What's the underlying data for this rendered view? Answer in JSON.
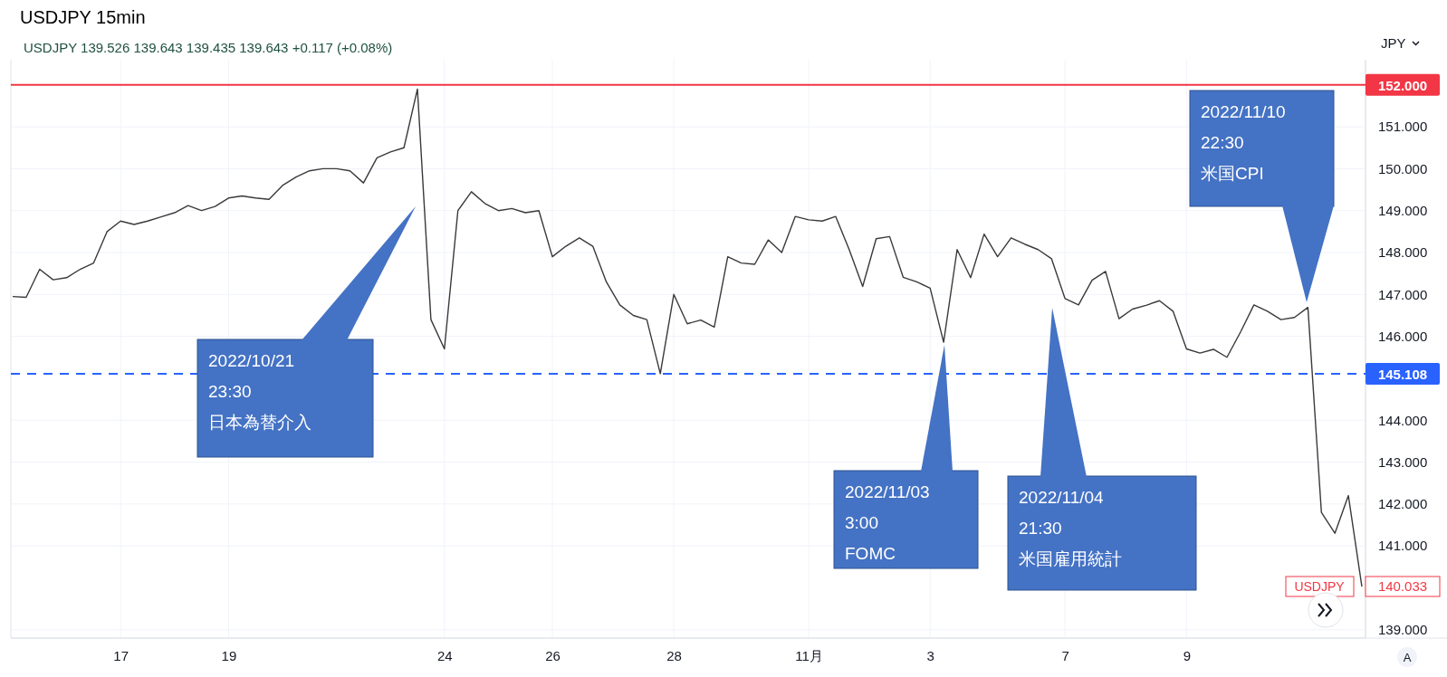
{
  "chart_data": {
    "type": "line",
    "title": "USDJPY 15min",
    "subtitle": "USDJPY 139.526 139.643 139.435 139.643 +0.117 (+0.08%)",
    "categories": [
      null,
      null,
      null,
      null,
      null,
      null,
      null,
      null,
      "17",
      null,
      null,
      null,
      null,
      null,
      null,
      null,
      "19",
      null,
      null,
      null,
      null,
      null,
      null,
      null,
      null,
      null,
      null,
      null,
      null,
      null,
      null,
      null,
      "24",
      null,
      null,
      null,
      null,
      null,
      null,
      null,
      "26",
      null,
      null,
      null,
      null,
      null,
      null,
      null,
      null,
      "28",
      null,
      null,
      null,
      null,
      null,
      null,
      null,
      null,
      null,
      "11月",
      null,
      null,
      null,
      null,
      null,
      null,
      null,
      null,
      "3",
      null,
      null,
      null,
      null,
      null,
      null,
      null,
      null,
      null,
      "7",
      null,
      null,
      null,
      null,
      null,
      null,
      null,
      null,
      "9",
      null,
      null,
      null,
      null,
      null,
      null,
      null,
      null,
      null,
      null,
      null,
      null,
      null
    ],
    "series": [
      {
        "color": "#3a3a3a",
        "values": [
          146.95,
          146.93,
          147.6,
          147.35,
          147.4,
          147.6,
          147.75,
          148.5,
          148.75,
          148.67,
          148.75,
          148.85,
          148.95,
          149.12,
          149.0,
          149.1,
          149.3,
          149.35,
          149.3,
          149.27,
          149.6,
          149.8,
          149.95,
          150.0,
          150.0,
          149.95,
          149.66,
          150.26,
          150.4,
          150.5,
          151.9,
          146.4,
          145.7,
          149.0,
          149.45,
          149.17,
          149.0,
          149.05,
          148.95,
          149.0,
          147.9,
          148.15,
          148.35,
          148.15,
          147.3,
          146.75,
          146.5,
          146.4,
          145.11,
          147.0,
          146.3,
          146.39,
          146.22,
          147.9,
          147.75,
          147.72,
          148.3,
          148.0,
          148.86,
          148.78,
          148.75,
          148.86,
          148.07,
          147.19,
          148.33,
          148.38,
          147.41,
          147.3,
          147.15,
          145.86,
          148.07,
          147.4,
          148.44,
          147.9,
          148.35,
          148.2,
          148.07,
          147.85,
          146.9,
          146.75,
          147.34,
          147.55,
          146.42,
          146.65,
          146.74,
          146.85,
          146.6,
          145.7,
          145.6,
          145.69,
          145.5,
          146.1,
          146.75,
          146.6,
          146.4,
          146.45,
          146.69,
          141.8,
          141.3,
          142.2,
          140.03
        ]
      }
    ],
    "ylim": [
      138.8,
      152.6
    ],
    "yticks": [
      {
        "value": 139,
        "label": "139.000"
      },
      {
        "value": 141,
        "label": "141.000"
      },
      {
        "value": 142,
        "label": "142.000"
      },
      {
        "value": 143,
        "label": "143.000"
      },
      {
        "value": 144,
        "label": "144.000"
      },
      {
        "value": 146,
        "label": "146.000"
      },
      {
        "value": 147,
        "label": "147.000"
      },
      {
        "value": 148,
        "label": "148.000"
      },
      {
        "value": 149,
        "label": "149.000"
      },
      {
        "value": 150,
        "label": "150.000"
      },
      {
        "value": 151,
        "label": "151.000"
      }
    ],
    "grid": true,
    "ref_lines": [
      {
        "axis": "y",
        "value": 152,
        "label": "152.000",
        "color": "#f23645",
        "line_style": "solid"
      },
      {
        "axis": "y",
        "value": 145.108,
        "label": "145.108",
        "color": "#2962ff",
        "line_style": "dashed"
      }
    ],
    "annotations": [
      "2022/10/21\n23:30\n日本為替介入",
      "2022/11/03\n3:00\nFOMC",
      "2022/11/04\n21:30\n米国雇用統計",
      "2022/11/10\n22:30\n米国CPI",
      "USDJPY",
      "140.033",
      "JPY",
      "A"
    ]
  }
}
